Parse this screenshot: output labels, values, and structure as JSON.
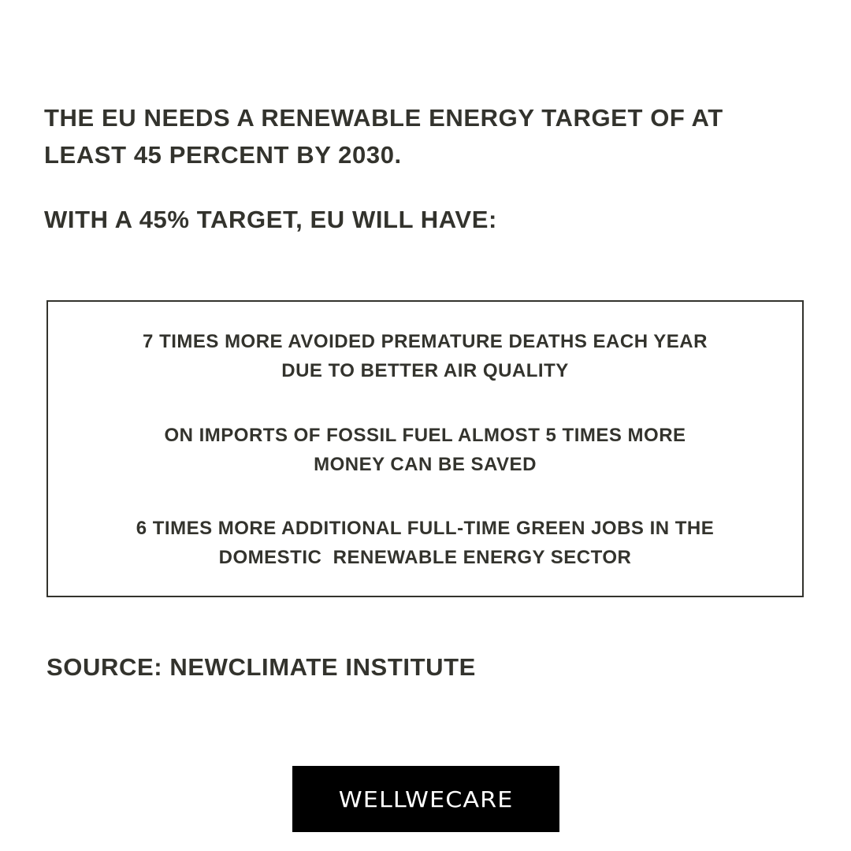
{
  "headline": {
    "line1": "THE EU NEEDS A RENEWABLE ENERGY TARGET OF AT",
    "line2": "LEAST 45 PERCENT BY 2030."
  },
  "subhead": "WITH A 45% TARGET, EU WILL HAVE:",
  "facts": [
    {
      "line1": "7 TIMES MORE AVOIDED PREMATURE DEATHS EACH YEAR",
      "line2": "DUE TO BETTER AIR QUALITY"
    },
    {
      "line1": "ON IMPORTS OF FOSSIL FUEL ALMOST 5 TIMES MORE",
      "line2": "MONEY CAN BE SAVED"
    },
    {
      "line1": "6 TIMES MORE ADDITIONAL FULL-TIME GREEN JOBS IN THE",
      "line2": "DOMESTIC  RENEWABLE ENERGY SECTOR"
    }
  ],
  "source": "SOURCE: NEWCLIMATE INSTITUTE",
  "logo": {
    "text": "WELLWECARE",
    "background": "#000000",
    "color": "#ffffff"
  },
  "colors": {
    "text": "#33332d",
    "background": "#ffffff"
  }
}
